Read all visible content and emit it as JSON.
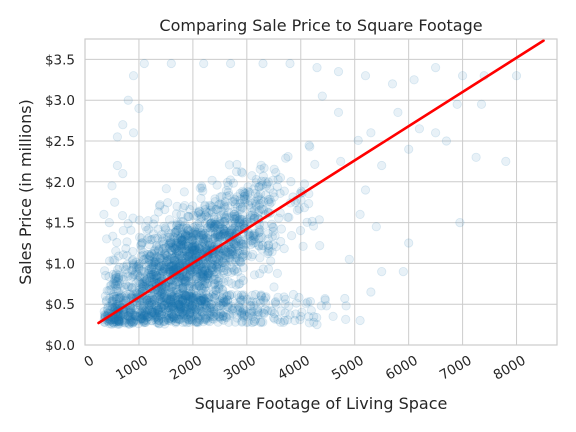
{
  "chart_data": {
    "type": "scatter",
    "title": "Comparing Sale Price to Square Footage",
    "xlabel": "Square Footage of Living Space",
    "ylabel": "Sales Price (in millions)",
    "xlim": [
      0,
      8750
    ],
    "ylim": [
      0.0,
      3.75
    ],
    "x_ticks": [
      0,
      1000,
      2000,
      3000,
      4000,
      5000,
      6000,
      7000,
      8000
    ],
    "x_tick_labels": [
      "0",
      "1000",
      "2000",
      "3000",
      "4000",
      "5000",
      "6000",
      "7000",
      "8000"
    ],
    "y_ticks": [
      0.0,
      0.5,
      1.0,
      1.5,
      2.0,
      2.5,
      3.0,
      3.5
    ],
    "y_tick_labels": [
      "$0.0",
      "$0.5",
      "$1.0",
      "$1.5",
      "$2.0",
      "$2.5",
      "$3.0",
      "$3.5"
    ],
    "grid": true,
    "scatter_color": "#1f77b4",
    "scatter_alpha": 0.1,
    "regression_line": {
      "color": "#ff0000",
      "x": [
        250,
        8500
      ],
      "y": [
        0.27,
        3.73
      ]
    },
    "point_cloud": {
      "core": {
        "center": [
          1900,
          1.0
        ],
        "spread": [
          900,
          0.45
        ],
        "correlation": 0.7,
        "count": 1800
      },
      "outliers": [
        [
          400,
          1.3
        ],
        [
          350,
          1.6
        ],
        [
          500,
          1.95
        ],
        [
          600,
          2.2
        ],
        [
          700,
          2.7
        ],
        [
          800,
          3.0
        ],
        [
          900,
          3.3
        ],
        [
          1100,
          3.45
        ],
        [
          1600,
          3.45
        ],
        [
          2200,
          3.45
        ],
        [
          2700,
          3.45
        ],
        [
          3300,
          3.45
        ],
        [
          3800,
          3.45
        ],
        [
          4300,
          3.4
        ],
        [
          4700,
          3.35
        ],
        [
          5200,
          3.3
        ],
        [
          5700,
          3.2
        ],
        [
          6100,
          3.25
        ],
        [
          6500,
          3.4
        ],
        [
          7000,
          3.3
        ],
        [
          7400,
          3.3
        ],
        [
          8000,
          3.3
        ],
        [
          6700,
          2.5
        ],
        [
          6500,
          2.6
        ],
        [
          7250,
          2.3
        ],
        [
          7800,
          2.25
        ],
        [
          6900,
          2.95
        ],
        [
          7350,
          2.95
        ],
        [
          5800,
          2.85
        ],
        [
          6200,
          2.65
        ],
        [
          6000,
          2.4
        ],
        [
          5500,
          2.2
        ],
        [
          5200,
          1.9
        ],
        [
          5100,
          1.6
        ],
        [
          5400,
          1.45
        ],
        [
          6000,
          1.25
        ],
        [
          6950,
          1.5
        ],
        [
          5900,
          0.9
        ],
        [
          5500,
          0.9
        ],
        [
          5300,
          0.65
        ],
        [
          5100,
          0.3
        ],
        [
          4600,
          0.35
        ],
        [
          4300,
          0.25
        ],
        [
          4000,
          0.35
        ],
        [
          3700,
          0.3
        ],
        [
          4900,
          1.05
        ],
        [
          5300,
          2.6
        ],
        [
          4700,
          2.85
        ],
        [
          4400,
          3.05
        ],
        [
          600,
          2.55
        ],
        [
          700,
          2.1
        ],
        [
          550,
          1.75
        ],
        [
          450,
          1.5
        ],
        [
          900,
          2.6
        ],
        [
          1000,
          2.9
        ]
      ]
    }
  }
}
